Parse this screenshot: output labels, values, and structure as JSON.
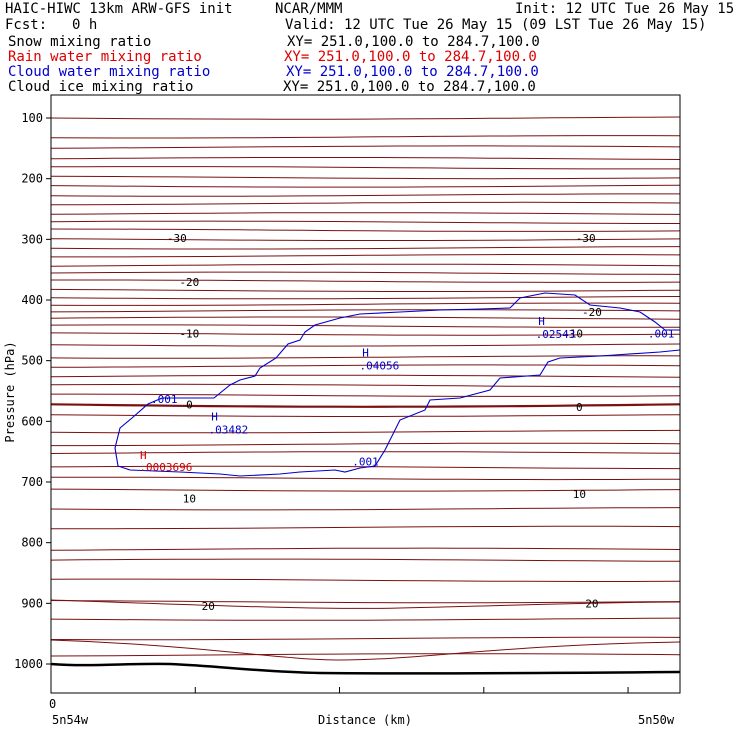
{
  "header": {
    "model_line": "HAIC-HIWC 13km ARW-GFS init",
    "center": "NCAR/MMM",
    "init": "Init: 12 UTC Tue 26 May 15",
    "fcst_label": "Fcst:",
    "fcst_value": "0 h",
    "valid": "Valid: 12 UTC Tue 26 May 15 (09 LST Tue 26 May 15)"
  },
  "fields": [
    {
      "name": "Snow mixing ratio",
      "xy": "XY= 251.0,100.0 to 284.7,100.0",
      "color": "#000000"
    },
    {
      "name": "Rain water mixing ratio",
      "xy": "XY= 251.0,100.0 to 284.7,100.0",
      "color": "#dd0000"
    },
    {
      "name": "Cloud water mixing ratio",
      "xy": "XY= 251.0,100.0 to 284.7,100.0",
      "color": "#0000cc"
    },
    {
      "name": "Cloud ice mixing ratio",
      "xy": "XY= 251.0,100.0 to 284.7,100.0",
      "color": "#000000"
    }
  ],
  "chart_data": {
    "type": "line",
    "xlabel": "Distance (km)",
    "ylabel": "Pressure (hPa)",
    "x_ticklabels": {
      "left_value": "0",
      "left_loc": "5n54w",
      "right_loc": "5n50w"
    },
    "y_ticks": [
      100,
      200,
      300,
      400,
      500,
      600,
      700,
      800,
      900,
      1000
    ],
    "ylim": [
      50,
      1050
    ],
    "y_scale": "pressure",
    "colors": {
      "temperature": "#7a1010",
      "cloud_water": "#0000cc",
      "rain": "#cc0000",
      "terrain": "#000000"
    },
    "temperature_isotherm_labels": [
      {
        "label": "-30",
        "positions": [
          [
            0.2,
            298
          ],
          [
            0.85,
            298
          ]
        ]
      },
      {
        "label": "-20",
        "positions": [
          [
            0.22,
            370
          ],
          [
            0.86,
            420
          ]
        ]
      },
      {
        "label": "-10",
        "positions": [
          [
            0.22,
            455
          ],
          [
            0.83,
            455
          ]
        ]
      },
      {
        "label": "0",
        "positions": [
          [
            0.22,
            572
          ],
          [
            0.84,
            576
          ]
        ]
      },
      {
        "label": "10",
        "positions": [
          [
            0.22,
            727
          ],
          [
            0.84,
            720
          ]
        ]
      },
      {
        "label": "20",
        "positions": [
          [
            0.25,
            904
          ],
          [
            0.86,
            900
          ]
        ]
      }
    ],
    "cloud_water_labels": [
      {
        "text": ".001",
        "x": 0.18,
        "p": 563
      },
      {
        "text": ".001",
        "x": 0.5,
        "p": 666
      },
      {
        "text": ".001",
        "x": 0.97,
        "p": 455
      }
    ],
    "cloud_water_maxima": [
      {
        "text": "H",
        "value": ".03482",
        "x": 0.26,
        "p": 605
      },
      {
        "text": "H",
        "value": ".04056",
        "x": 0.5,
        "p": 500
      },
      {
        "text": "H",
        "value": ".02543",
        "x": 0.78,
        "p": 448
      }
    ],
    "rain_maxima": [
      {
        "text": "H",
        "value": ".0003696",
        "x": 0.15,
        "p": 672
      }
    ]
  }
}
